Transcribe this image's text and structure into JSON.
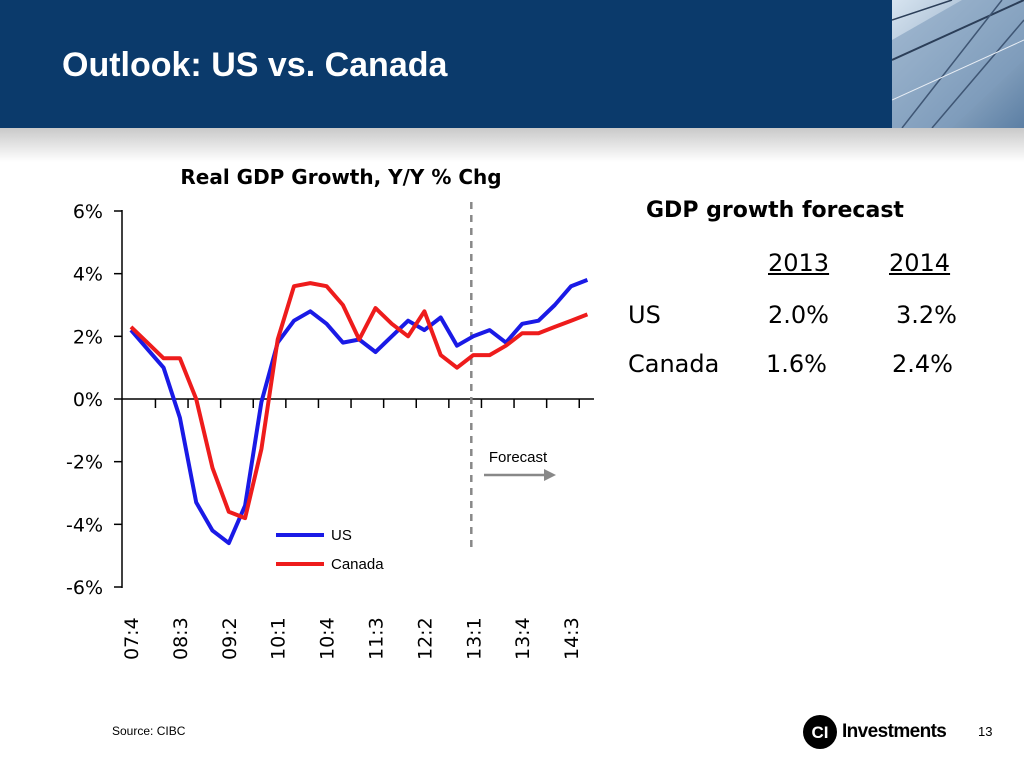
{
  "slide": {
    "title": "Outlook: US vs. Canada",
    "source": "Source: CIBC",
    "page_number": "13",
    "logo": {
      "mark": "CI",
      "text": "Investments"
    }
  },
  "colors": {
    "header": "#0b3a6b",
    "us": "#1a1ae6",
    "canada": "#ee1c1c",
    "forecast_line": "#888888"
  },
  "forecast_table": {
    "title": "GDP growth forecast",
    "years": [
      "2013",
      "2014"
    ],
    "rows": [
      {
        "label": "US",
        "values": [
          "2.0%",
          "3.2%"
        ]
      },
      {
        "label": "Canada",
        "values": [
          "1.6%",
          "2.4%"
        ]
      }
    ]
  },
  "chart_data": {
    "type": "line",
    "title": "Real GDP Growth, Y/Y % Chg",
    "xlabel": "",
    "ylabel": "",
    "ylim": [
      -6,
      6
    ],
    "yticks": [
      6,
      4,
      2,
      0,
      -2,
      -4,
      -6
    ],
    "ytick_labels": [
      "6%",
      "4%",
      "2%",
      "0%",
      "-2%",
      "-4%",
      "-6%"
    ],
    "x": [
      "07:4",
      "08:1",
      "08:2",
      "08:3",
      "08:4",
      "09:1",
      "09:2",
      "09:3",
      "09:4",
      "10:1",
      "10:2",
      "10:3",
      "10:4",
      "11:1",
      "11:2",
      "11:3",
      "11:4",
      "12:1",
      "12:2",
      "12:3",
      "12:4",
      "13:1",
      "13:2",
      "13:3",
      "13:4",
      "14:1",
      "14:2",
      "14:3",
      "14:4"
    ],
    "xtick_labels": [
      "07:4",
      "08:3",
      "09:2",
      "10:1",
      "10:4",
      "11:3",
      "12:2",
      "13:1",
      "13:4",
      "14:3"
    ],
    "forecast_start": "13:1",
    "annotations": [
      "Forecast"
    ],
    "legend": "center-bottom",
    "series": [
      {
        "name": "US",
        "values": [
          2.2,
          1.6,
          1.0,
          -0.6,
          -3.3,
          -4.2,
          -4.6,
          -3.4,
          -0.1,
          1.8,
          2.5,
          2.8,
          2.4,
          1.8,
          1.9,
          1.5,
          2.0,
          2.5,
          2.2,
          2.6,
          1.7,
          2.0,
          2.2,
          1.8,
          2.4,
          2.5,
          3.0,
          3.6,
          3.8
        ]
      },
      {
        "name": "Canada",
        "values": [
          2.3,
          1.8,
          1.3,
          1.3,
          0.0,
          -2.2,
          -3.6,
          -3.8,
          -1.6,
          1.9,
          3.6,
          3.7,
          3.6,
          3.0,
          1.9,
          2.9,
          2.4,
          2.0,
          2.8,
          1.4,
          1.0,
          1.4,
          1.4,
          1.7,
          2.1,
          2.1,
          2.3,
          2.5,
          2.7
        ]
      }
    ]
  }
}
